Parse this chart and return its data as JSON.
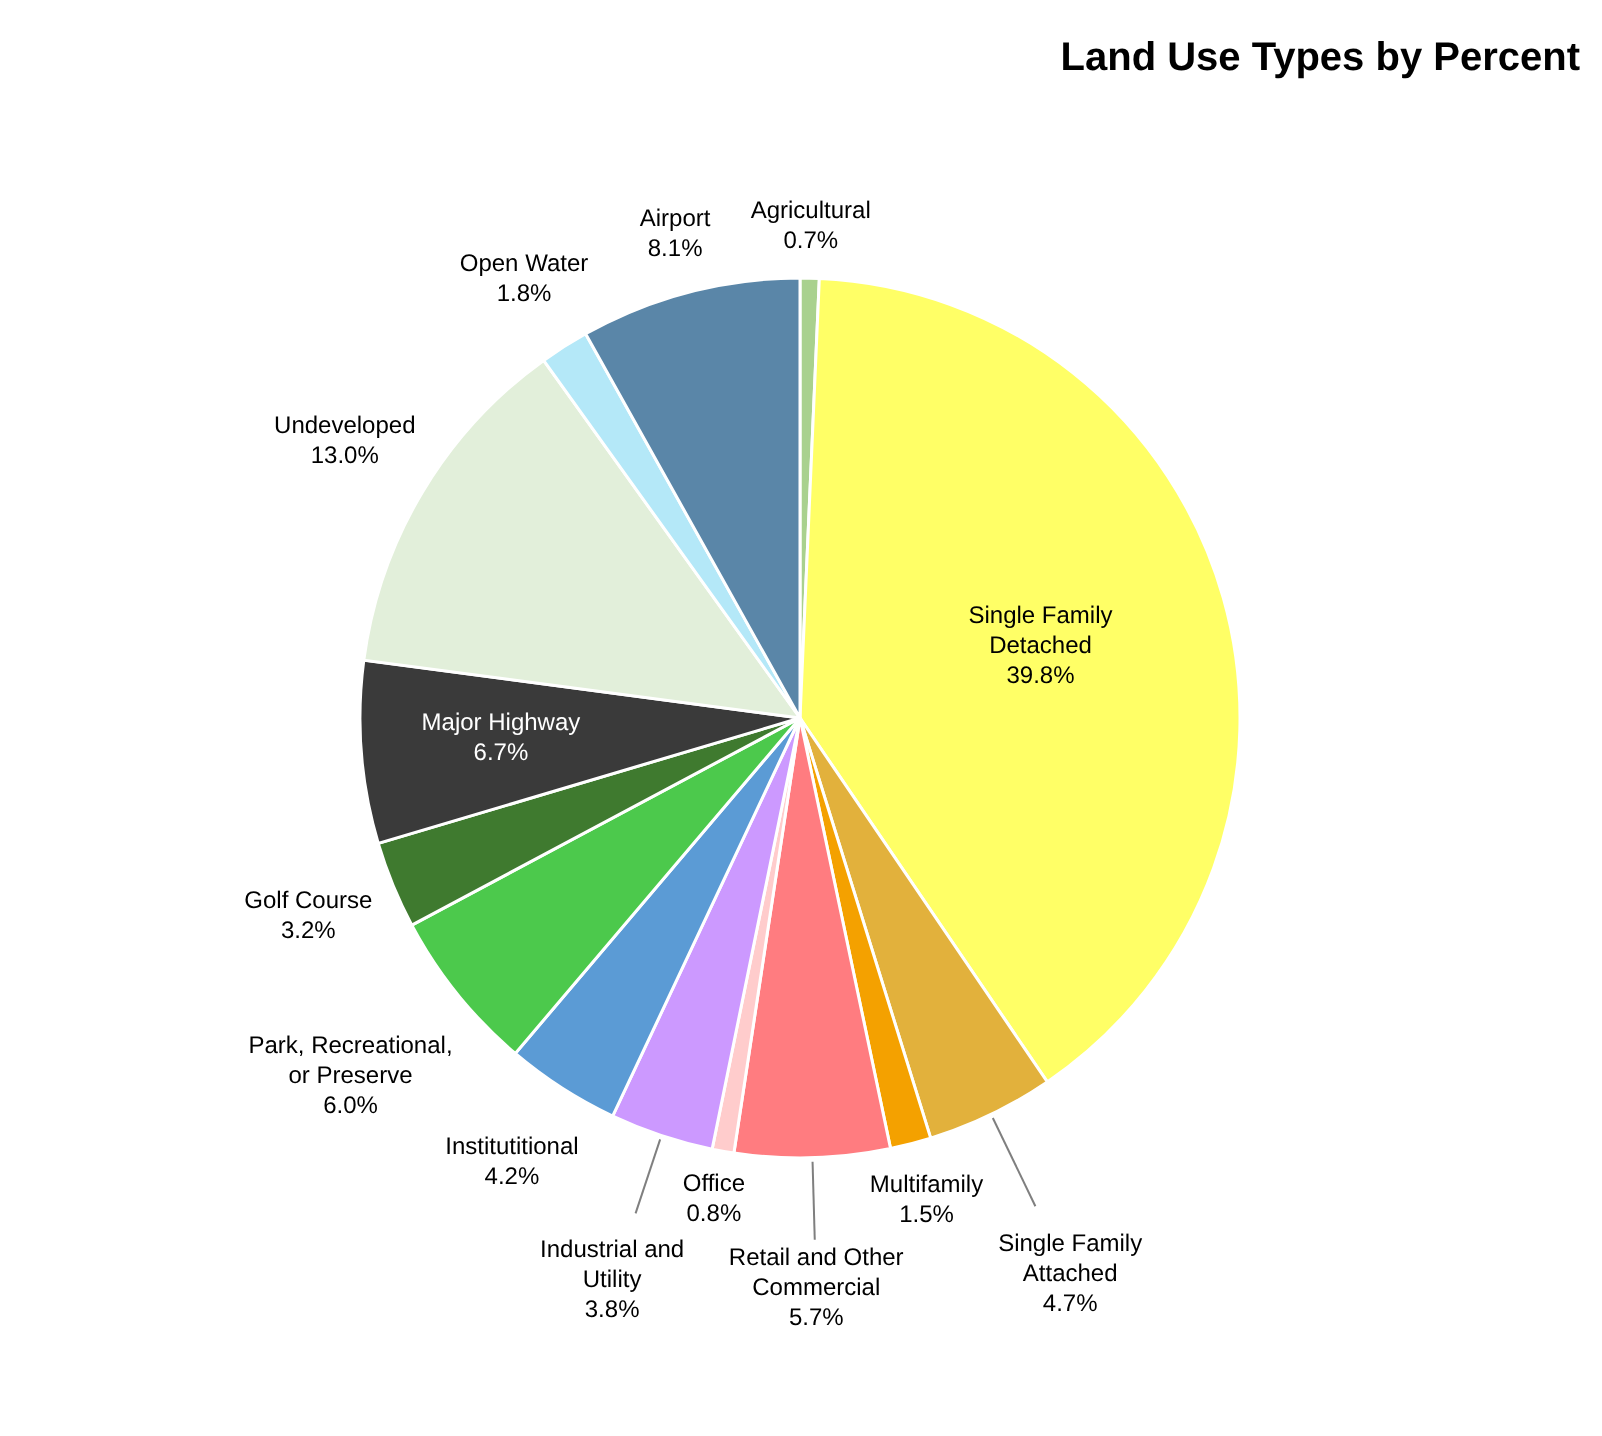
{
  "chart_data": {
    "type": "pie",
    "title": "Land Use Types by Percent",
    "categories": [
      "Agricultural",
      "Single Family Detached",
      "Single Family Attached",
      "Multifamily",
      "Retail and Other Commercial",
      "Office",
      "Industrial and Utility",
      "Institutitional",
      "Park, Recreational, or Preserve",
      "Golf Course",
      "Major Highway",
      "Undeveloped",
      "Open Water",
      "Airport"
    ],
    "values": [
      0.7,
      39.8,
      4.7,
      1.5,
      5.7,
      0.8,
      3.8,
      4.2,
      6.0,
      3.2,
      6.7,
      13.0,
      1.8,
      8.1
    ],
    "value_labels": [
      "0.7%",
      "39.8%",
      "4.7%",
      "1.5%",
      "5.7%",
      "0.8%",
      "3.8%",
      "4.2%",
      "6.0%",
      "3.2%",
      "6.7%",
      "13.0%",
      "1.8%",
      "8.1%"
    ],
    "colors": [
      "#a9d18e",
      "#ffff66",
      "#e2b13c",
      "#f4a100",
      "#ff7c80",
      "#ffcccc",
      "#cc99ff",
      "#5b9bd5",
      "#4cc94c",
      "#3f7a2f",
      "#3a3a3a",
      "#e2efda",
      "#b4e8f8",
      "#5a86a8"
    ],
    "legend": false
  }
}
